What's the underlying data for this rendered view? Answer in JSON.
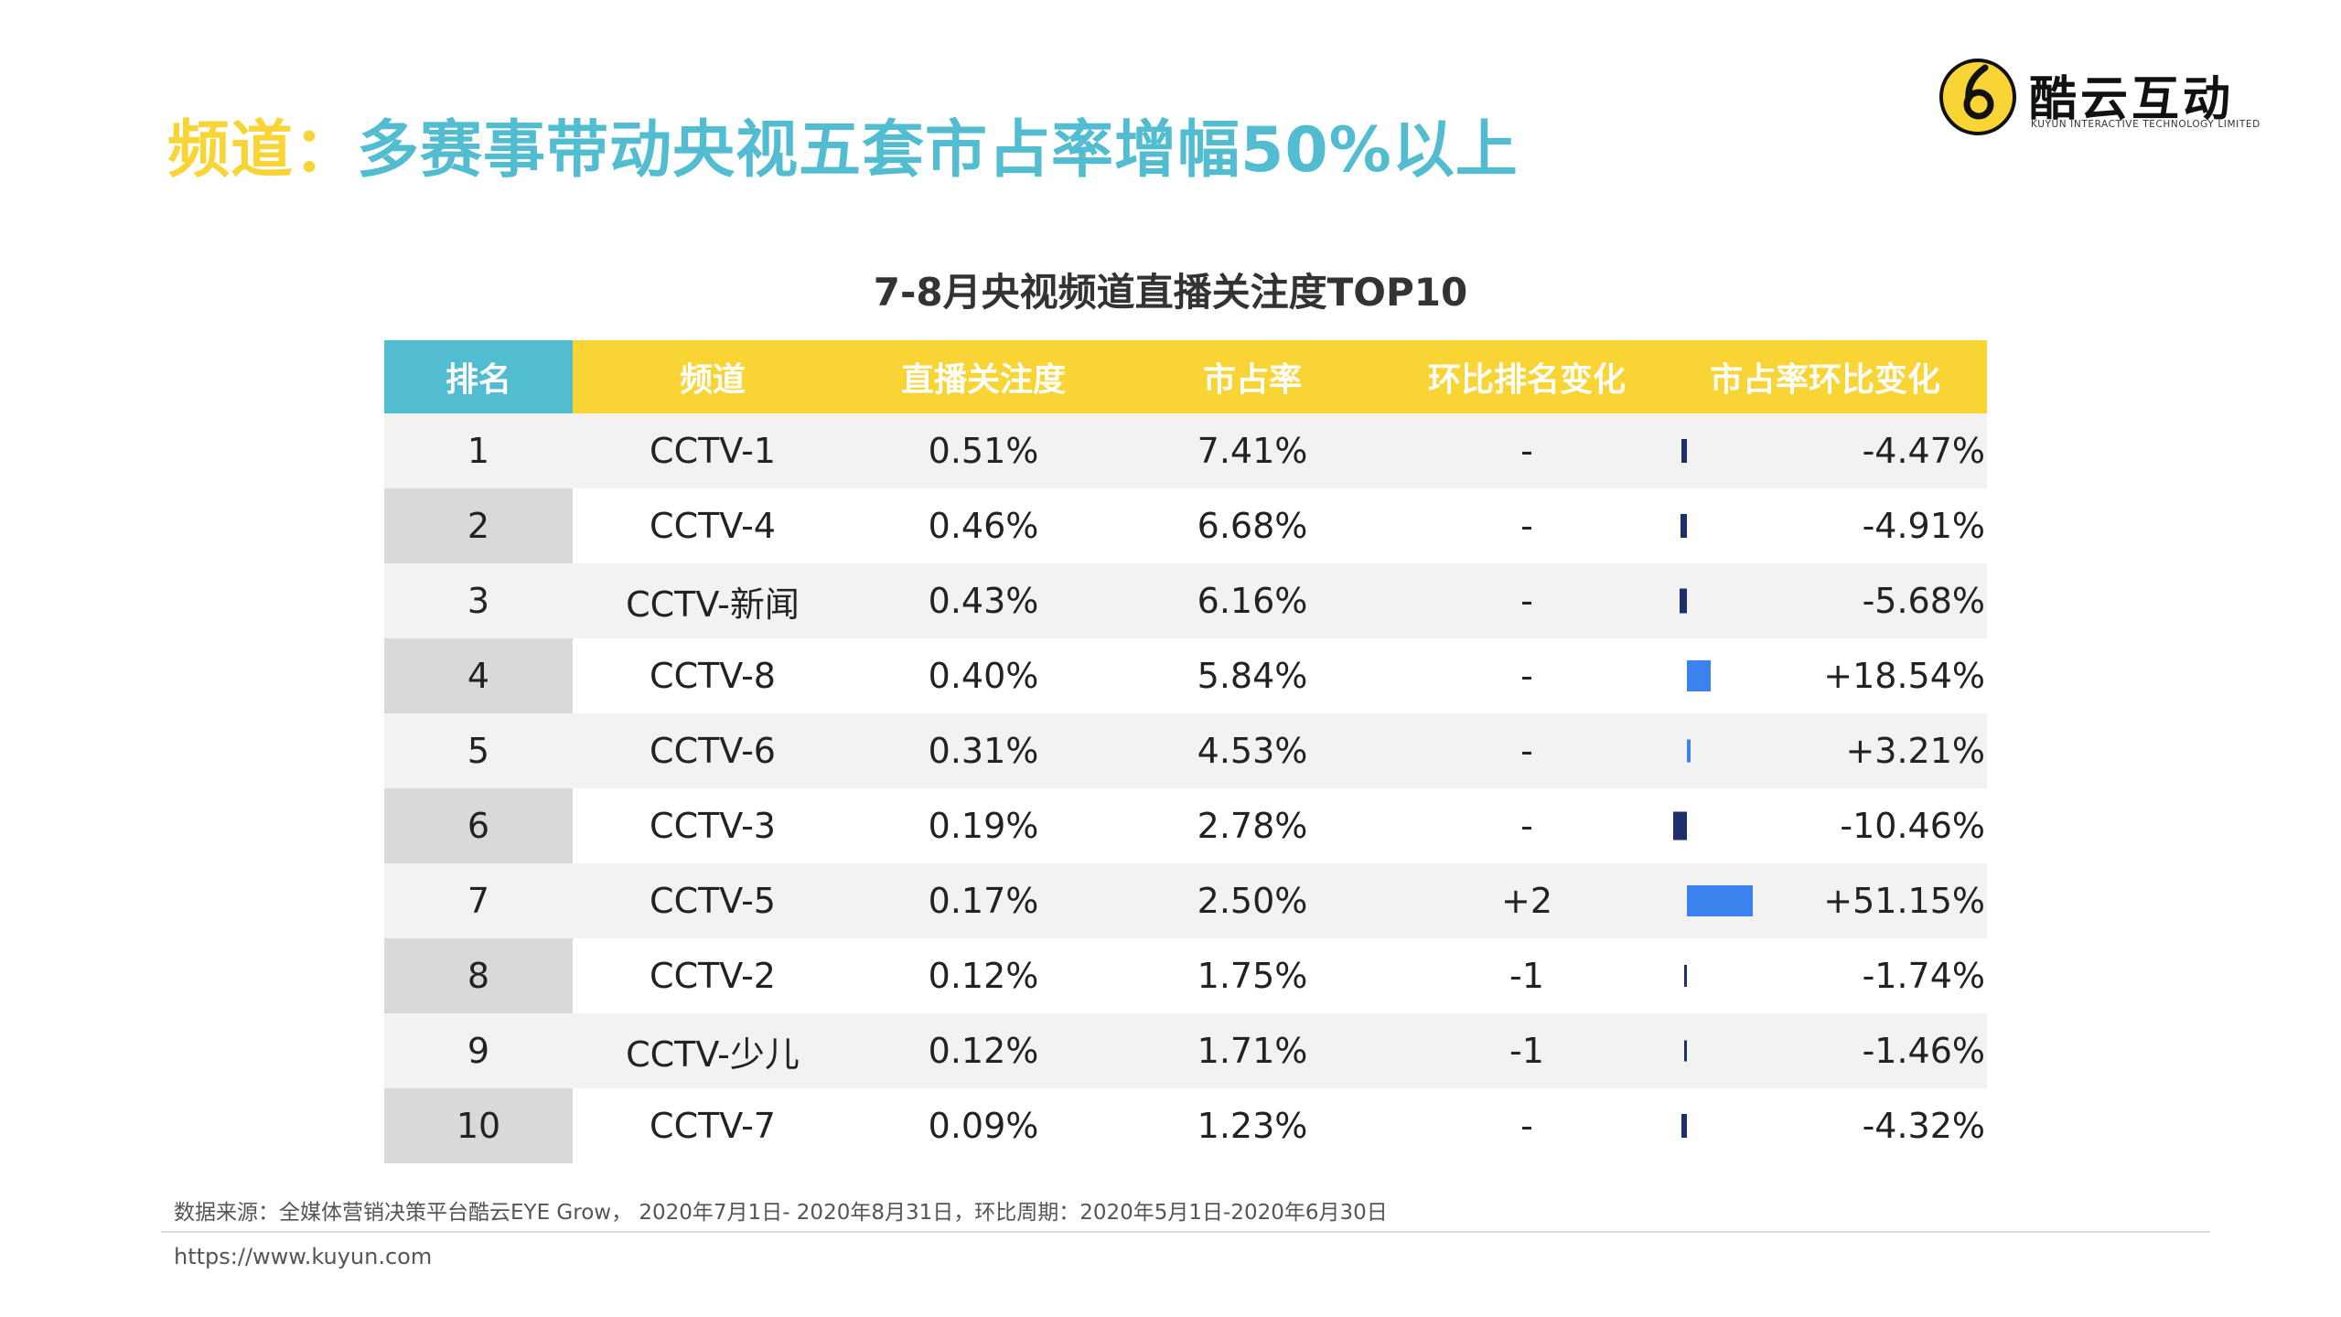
{
  "header": {
    "title_tag": "频道：",
    "title_main": "多赛事带动央视五套市占率增幅50%以上"
  },
  "logo": {
    "name": "酷云互动",
    "subtitle": "KUYUN INTERACTIVE TECHNOLOGY LIMITED"
  },
  "table": {
    "title": "7-8月央视频道直播关注度TOP10",
    "columns": [
      "排名",
      "频道",
      "直播关注度",
      "市占率",
      "环比排名变化",
      "市占率环比变化"
    ],
    "rows": [
      {
        "rank": "1",
        "channel": "CCTV-1",
        "attention": "0.51%",
        "share": "7.41%",
        "rank_change": "-",
        "share_change": "-4.47%",
        "share_change_value": -4.47
      },
      {
        "rank": "2",
        "channel": "CCTV-4",
        "attention": "0.46%",
        "share": "6.68%",
        "rank_change": "-",
        "share_change": "-4.91%",
        "share_change_value": -4.91
      },
      {
        "rank": "3",
        "channel": "CCTV-新闻",
        "attention": "0.43%",
        "share": "6.16%",
        "rank_change": "-",
        "share_change": "-5.68%",
        "share_change_value": -5.68
      },
      {
        "rank": "4",
        "channel": "CCTV-8",
        "attention": "0.40%",
        "share": "5.84%",
        "rank_change": "-",
        "share_change": "+18.54%",
        "share_change_value": 18.54
      },
      {
        "rank": "5",
        "channel": "CCTV-6",
        "attention": "0.31%",
        "share": "4.53%",
        "rank_change": "-",
        "share_change": "+3.21%",
        "share_change_value": 3.21
      },
      {
        "rank": "6",
        "channel": "CCTV-3",
        "attention": "0.19%",
        "share": "2.78%",
        "rank_change": "-",
        "share_change": "-10.46%",
        "share_change_value": -10.46
      },
      {
        "rank": "7",
        "channel": "CCTV-5",
        "attention": "0.17%",
        "share": "2.50%",
        "rank_change": "+2",
        "share_change": "+51.15%",
        "share_change_value": 51.15
      },
      {
        "rank": "8",
        "channel": "CCTV-2",
        "attention": "0.12%",
        "share": "1.75%",
        "rank_change": "-1",
        "share_change": "-1.74%",
        "share_change_value": -1.74
      },
      {
        "rank": "9",
        "channel": "CCTV-少儿",
        "attention": "0.12%",
        "share": "1.71%",
        "rank_change": "-1",
        "share_change": "-1.46%",
        "share_change_value": -1.46
      },
      {
        "rank": "10",
        "channel": "CCTV-7",
        "attention": "0.09%",
        "share": "1.23%",
        "rank_change": "-",
        "share_change": "-4.32%",
        "share_change_value": -4.32
      }
    ]
  },
  "colors": {
    "header_rank": "#52BCD0",
    "header_other": "#F9D435",
    "bar_negative": "#1F2F6B",
    "bar_positive": "#3C82EE",
    "title_tag": "#F9D435",
    "title_main": "#52BCD0"
  },
  "footer": {
    "source": "数据来源：全媒体营销决策平台酷云EYE Grow， 2020年7月1日- 2020年8月31日，环比周期：2020年5月1日-2020年6月30日",
    "url": "https://www.kuyun.com"
  }
}
